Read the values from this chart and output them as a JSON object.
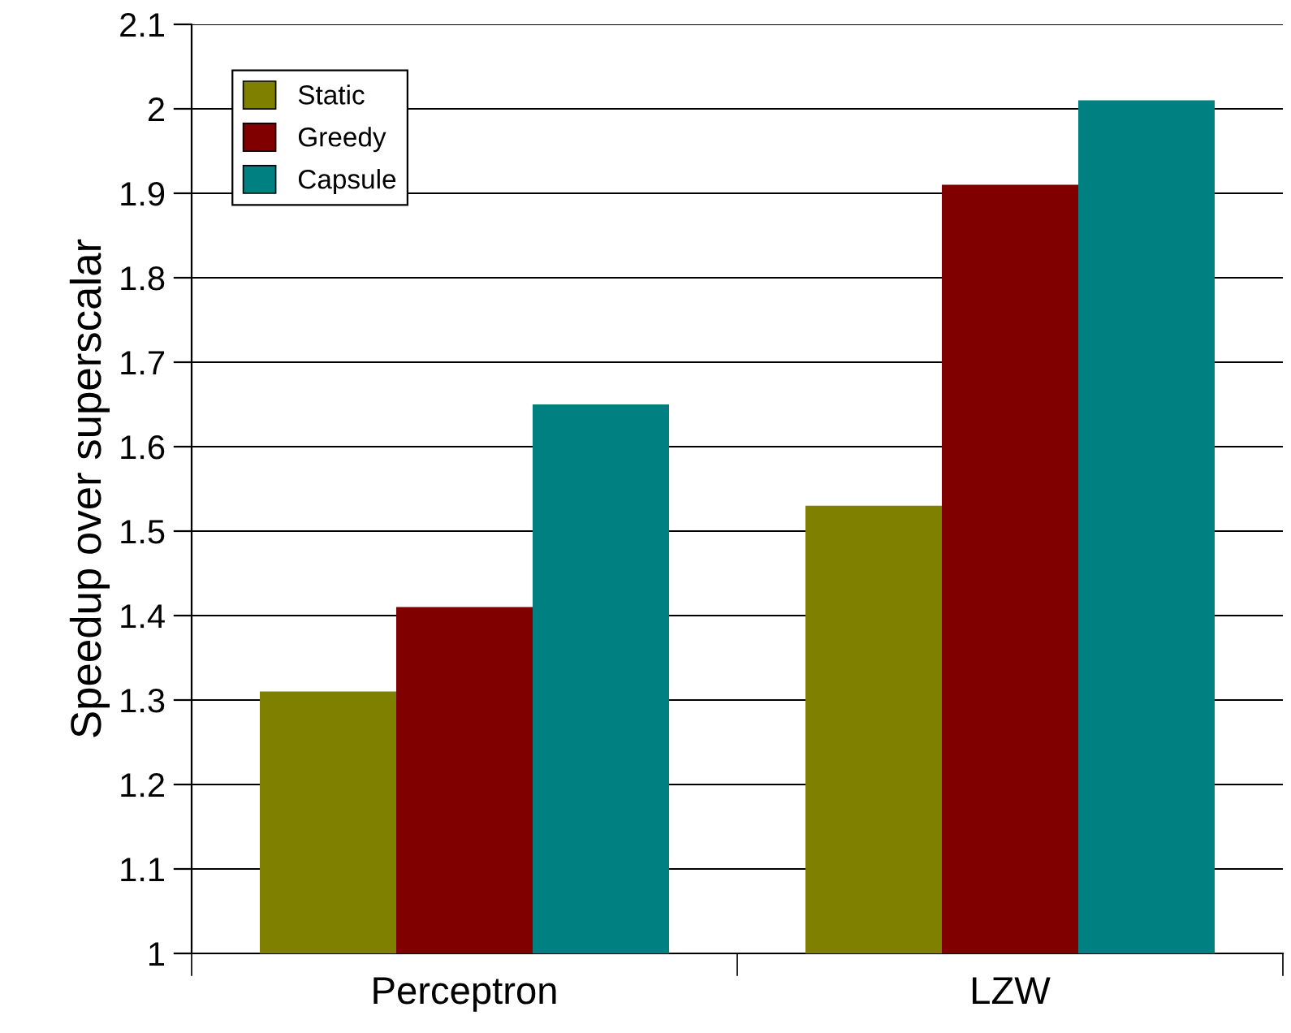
{
  "chart_data": {
    "type": "bar",
    "ylabel": "Speedup over superscalar",
    "categories": [
      "Perceptron",
      "LZW"
    ],
    "series": [
      {
        "name": "Static",
        "color": "#808000",
        "values": [
          1.31,
          1.53
        ]
      },
      {
        "name": "Greedy",
        "color": "#800000",
        "values": [
          1.41,
          1.91
        ]
      },
      {
        "name": "Capsule",
        "color": "#008080",
        "values": [
          1.65,
          2.01
        ]
      }
    ],
    "ylim": [
      1,
      2.1
    ],
    "yticks": [
      1,
      1.1,
      1.2,
      1.3,
      1.4,
      1.5,
      1.6,
      1.7,
      1.8,
      1.9,
      2,
      2.1
    ],
    "grid": "y",
    "legend": "top left"
  }
}
